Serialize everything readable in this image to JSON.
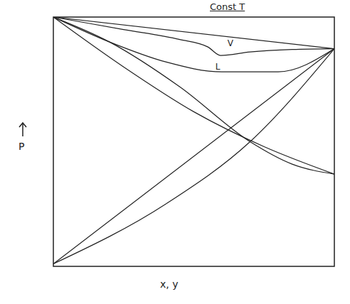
{
  "chart_data": {
    "type": "line",
    "title": "Const T",
    "xlabel": "x, y",
    "ylabel": "P",
    "xlim": [
      0,
      1
    ],
    "ylim": [
      0,
      1
    ],
    "tick_labels": false,
    "grid": false,
    "series": [
      {
        "color": "#222222",
        "line_style": "solid",
        "marker": "none",
        "x": [
          0,
          1
        ],
        "values": [
          1,
          0.873
        ]
      },
      {
        "color": "#222222",
        "line_style": "solid",
        "marker": "none",
        "x": [
          0,
          0.25,
          0.45,
          0.55,
          0.595,
          0.7,
          0.85,
          1
        ],
        "values": [
          1,
          0.95,
          0.91,
          0.88,
          0.846,
          0.86,
          0.87,
          0.873
        ]
      },
      {
        "color": "#222222",
        "line_style": "solid",
        "marker": "none",
        "x": [
          0,
          0.2,
          0.4,
          0.6,
          0.8,
          1
        ],
        "values": [
          1,
          0.9,
          0.82,
          0.78,
          0.78,
          0.873
        ]
      },
      {
        "color": "#222222",
        "line_style": "solid",
        "marker": "none",
        "x": [
          0,
          0.25,
          0.5,
          0.75,
          1
        ],
        "values": [
          1,
          0.8,
          0.62,
          0.48,
          0.37
        ]
      },
      {
        "color": "#222222",
        "line_style": "solid",
        "marker": "none",
        "x": [
          0,
          0.2,
          0.45,
          0.7,
          0.85,
          1
        ],
        "values": [
          1,
          0.9,
          0.72,
          0.5,
          0.41,
          0.37
        ]
      },
      {
        "color": "#222222",
        "line_style": "solid",
        "marker": "none",
        "x": [
          0,
          1
        ],
        "values": [
          0.01,
          0.873
        ]
      },
      {
        "color": "#222222",
        "line_style": "solid",
        "marker": "none",
        "x": [
          0,
          0.4,
          0.7,
          1
        ],
        "values": [
          0.01,
          0.25,
          0.5,
          0.873
        ]
      }
    ],
    "annotations": [
      {
        "text": "L",
        "x": 0.585,
        "y": 0.8
      },
      {
        "text": "V",
        "x": 0.63,
        "y": 0.895
      }
    ]
  }
}
